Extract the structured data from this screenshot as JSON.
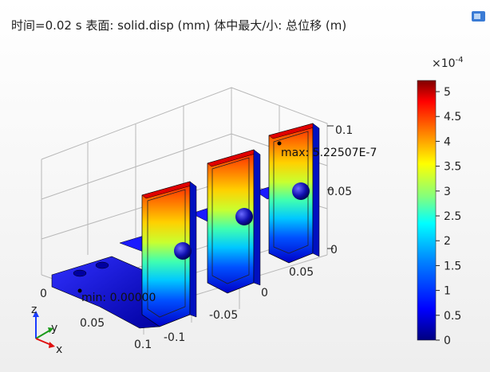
{
  "plot": {
    "title": "时间=0.02 s   表面: solid.disp (mm)  体中最大/小: 总位移 (m)",
    "annotations": {
      "max_label": "max: 5.22507E-7",
      "min_label": "min: 0.00000"
    }
  },
  "axes": {
    "z_ticks": [
      "0.1",
      "0.05",
      "0"
    ],
    "y_ticks": [
      "0.05",
      "0",
      "-0.05",
      "-0.1"
    ],
    "x_ticks": [
      "0",
      "0.05",
      "0.1"
    ],
    "triad": {
      "z": "z",
      "y": "y",
      "x": "x"
    }
  },
  "colorbar": {
    "exponent_label": "×10",
    "exponent_power": "-4",
    "ticks": [
      "5",
      "4.5",
      "4",
      "3.5",
      "3",
      "2.5",
      "2",
      "1.5",
      "1",
      "0.5",
      "0"
    ],
    "tick_values": [
      5,
      4.5,
      4,
      3.5,
      3,
      2.5,
      2,
      1.5,
      1,
      0.5,
      0
    ],
    "range": [
      0,
      5.225
    ],
    "colormap": [
      "#00007f",
      "#0000ff",
      "#0080ff",
      "#00ffff",
      "#80ff80",
      "#ffff00",
      "#ff8000",
      "#ff0000",
      "#7f0000"
    ]
  },
  "icons": {
    "corner": "view-toggle-icon"
  }
}
